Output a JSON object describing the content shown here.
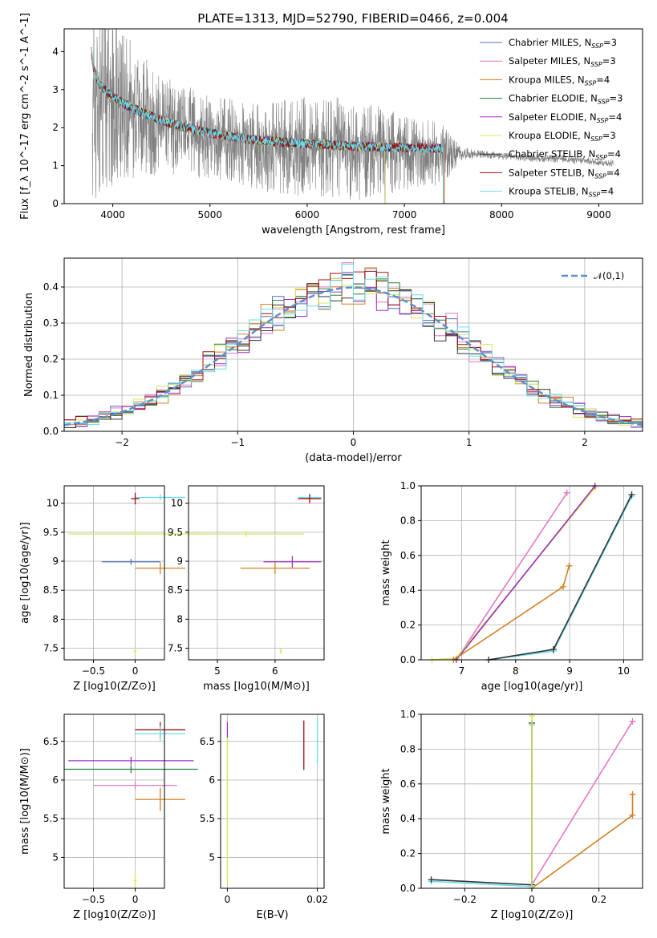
{
  "figure": {
    "title": "PLATE=1313, MJD=52790, FIBERID=0466, z=0.004"
  },
  "chart_data": [
    {
      "id": "spectrum",
      "type": "line",
      "title": "PLATE=1313, MJD=52790, FIBERID=0466, z=0.004",
      "xlabel": "wavelength [Angstrom, rest frame]",
      "ylabel": "Flux [f_λ 10^-17 erg cm^-2 s^-1 A^-1]",
      "xlim": [
        3500,
        9450
      ],
      "ylim": [
        0,
        4.6
      ],
      "xticks": [
        4000,
        5000,
        6000,
        7000,
        8000,
        9000
      ],
      "yticks": [
        0,
        1,
        2,
        3,
        4
      ],
      "grid": false,
      "legend_position": "top-right",
      "observed": {
        "name": "data",
        "x": [
          3790,
          3850,
          3950,
          4100,
          4300,
          4600,
          5000,
          5400,
          5800,
          6200,
          6600,
          7000,
          7400,
          7600,
          7800,
          8000,
          8300,
          8600,
          8900,
          9150
        ],
        "y": [
          2.4,
          3.0,
          2.9,
          2.6,
          2.3,
          2.0,
          1.75,
          1.6,
          1.5,
          1.45,
          1.4,
          1.35,
          1.3,
          1.32,
          1.3,
          1.25,
          1.2,
          1.18,
          1.12,
          1.05
        ],
        "noise_amplitude": [
          3.0,
          3.0,
          2.5,
          2.0,
          1.6,
          1.3,
          1.1,
          1.2,
          1.3,
          1.4,
          1.3,
          1.0,
          0.8,
          0.15,
          0.1,
          0.1,
          0.1,
          0.1,
          0.1,
          0.1
        ]
      },
      "models": [
        {
          "name": "Chabrier MILES, N_SSP=3",
          "color": "#4c72b0",
          "x_end": 7410
        },
        {
          "name": "Salpeter MILES, N_SSP=3",
          "color": "#e377c2",
          "x_end": 7410
        },
        {
          "name": "Kroupa MILES, N_SSP=4",
          "color": "#d08020",
          "x_end": 7410
        },
        {
          "name": "Chabrier ELODIE, N_SSP=3",
          "color": "#2a7d3a",
          "x_end": 6800
        },
        {
          "name": "Salpeter ELODIE, N_SSP=4",
          "color": "#9b30c0",
          "x_end": 6800
        },
        {
          "name": "Kroupa ELODIE, N_SSP=3",
          "color": "#d5e85a",
          "x_end": 6800
        },
        {
          "name": "Chabrier STELIB, N_SSP=4",
          "color": "#333333",
          "x_end": 7400
        },
        {
          "name": "Salpeter STELIB, N_SSP=4",
          "color": "#a01010",
          "x_end": 7400
        },
        {
          "name": "Kroupa STELIB, N_SSP=4",
          "color": "#66ddee",
          "x_end": 7400
        }
      ],
      "model_curve": {
        "x": [
          3780,
          3800,
          3850,
          3950,
          4100,
          4300,
          4600,
          5000,
          5400,
          5800,
          6200,
          6600,
          7000,
          7400
        ],
        "y": [
          4.0,
          3.6,
          3.2,
          2.9,
          2.65,
          2.4,
          2.1,
          1.85,
          1.7,
          1.6,
          1.55,
          1.5,
          1.48,
          1.45
        ]
      }
    },
    {
      "id": "residuals",
      "type": "line",
      "xlabel": "(data-model)/error",
      "ylabel": "Normed distribution",
      "xlim": [
        -2.5,
        2.5
      ],
      "ylim": [
        0,
        0.48
      ],
      "xticks": [
        -2,
        -1,
        0,
        1,
        2
      ],
      "yticks": [
        0.0,
        0.1,
        0.2,
        0.3,
        0.4
      ],
      "grid": true,
      "legend": [
        "𝒩(0,1)"
      ],
      "legend_position": "top-right",
      "reference": {
        "name": "𝒩(0,1)",
        "mean": 0,
        "sigma": 1,
        "color": "#5b8fd0"
      },
      "histogram_bin_width": 0.1
    },
    {
      "id": "age-vs-Z",
      "type": "scatter",
      "xlabel": "Z [log10(Z/Z⊙)]",
      "ylabel": "age [log10(age/yr)]",
      "xlim": [
        -0.85,
        0.35
      ],
      "ylim": [
        7.3,
        10.3
      ],
      "xticks": [
        -0.5,
        0.0
      ],
      "yticks": [
        7.5,
        8.0,
        8.5,
        9.0,
        9.5,
        10.0
      ],
      "grid": true,
      "points": [
        {
          "x": 0.3,
          "y": 10.1,
          "x_err": 0.3,
          "y_err": 0.05,
          "color": "#66ddee"
        },
        {
          "x": 0.0,
          "y": 10.08,
          "x_err": 0.05,
          "y_err": 0.1,
          "color": "#a01010"
        },
        {
          "x": 0.0,
          "y": 9.47,
          "x_err": 0.8,
          "y_err": 0.05,
          "color": "#d5e85a"
        },
        {
          "x": -0.05,
          "y": 8.99,
          "x_err": 0.35,
          "y_err": 0.05,
          "color": "#4c72b0"
        },
        {
          "x": 0.3,
          "y": 8.88,
          "x_err": 0.3,
          "y_err": 0.1,
          "color": "#d08020"
        },
        {
          "x": 0.0,
          "y": 7.45,
          "x_err": 0.02,
          "y_err": 0.05,
          "color": "#d5e85a"
        }
      ]
    },
    {
      "id": "age-vs-mass",
      "type": "scatter",
      "xlabel": "mass [log10(M/M⊙)]",
      "ylabel": "",
      "xlim": [
        4.5,
        6.85
      ],
      "ylim": [
        7.3,
        10.3
      ],
      "xticks": [
        5,
        6
      ],
      "yticks": [
        7.5,
        8.0,
        8.5,
        9.0,
        9.5,
        10.0
      ],
      "grid": true,
      "points": [
        {
          "x": 6.6,
          "y": 10.1,
          "x_err": 0.2,
          "y_err": 0.05,
          "color": "#66ddee"
        },
        {
          "x": 6.6,
          "y": 10.08,
          "x_err": 0.2,
          "y_err": 0.08,
          "color": "#a01010"
        },
        {
          "x": 5.5,
          "y": 9.47,
          "x_err": 1.0,
          "y_err": 0.05,
          "color": "#d5e85a"
        },
        {
          "x": 6.3,
          "y": 8.99,
          "x_err": 0.5,
          "y_err": 0.1,
          "color": "#9b30c0"
        },
        {
          "x": 6.0,
          "y": 8.88,
          "x_err": 0.6,
          "y_err": 0.1,
          "color": "#d08020"
        },
        {
          "x": 6.1,
          "y": 7.45,
          "x_err": 0.02,
          "y_err": 0.05,
          "color": "#d5e85a"
        }
      ]
    },
    {
      "id": "cumulative-age",
      "type": "line",
      "xlabel": "age [log10(age/yr)]",
      "ylabel": "mass weight",
      "xlim": [
        6.25,
        10.35
      ],
      "ylim": [
        0,
        1.0
      ],
      "xticks": [
        7,
        8,
        9,
        10
      ],
      "yticks": [
        0.0,
        0.2,
        0.4,
        0.6,
        0.8,
        1.0
      ],
      "grid": true,
      "series": [
        {
          "color": "#e377c2",
          "x": [
            6.9,
            8.95
          ],
          "y": [
            0.0,
            0.96
          ]
        },
        {
          "color": "#d5e85a",
          "x": [
            6.45,
            6.9,
            9.47
          ],
          "y": [
            0.0,
            0.01,
            0.99
          ]
        },
        {
          "color": "#9b30c0",
          "x": [
            6.9,
            9.47
          ],
          "y": [
            0.0,
            1.0
          ]
        },
        {
          "color": "#d08020",
          "x": [
            6.85,
            8.88,
            8.99
          ],
          "y": [
            0.0,
            0.42,
            0.54
          ]
        },
        {
          "color": "#66ddee",
          "x": [
            7.5,
            8.7,
            10.15
          ],
          "y": [
            0.0,
            0.05,
            0.94
          ]
        },
        {
          "color": "#333333",
          "x": [
            7.5,
            8.7,
            10.15
          ],
          "y": [
            0.0,
            0.06,
            0.95
          ]
        }
      ]
    },
    {
      "id": "mass-vs-Z",
      "type": "scatter",
      "xlabel": "Z [log10(Z/Z⊙)]",
      "ylabel": "mass [log10(M/M⊙)]",
      "xlim": [
        -0.85,
        0.35
      ],
      "ylim": [
        4.6,
        6.85
      ],
      "xticks": [
        -0.5,
        0.0
      ],
      "yticks": [
        5.0,
        5.5,
        6.0,
        6.5
      ],
      "grid": true,
      "points": [
        {
          "x": 0.3,
          "y": 6.65,
          "x_err": 0.3,
          "y_err": 0.1,
          "color": "#a01010"
        },
        {
          "x": 0.3,
          "y": 6.6,
          "x_err": 0.3,
          "y_err": 0.1,
          "color": "#66ddee"
        },
        {
          "x": -0.05,
          "y": 6.25,
          "x_err": 0.75,
          "y_err": 0.05,
          "color": "#9b30c0"
        },
        {
          "x": -0.05,
          "y": 6.14,
          "x_err": 0.8,
          "y_err": 0.05,
          "color": "#2a7d3a"
        },
        {
          "x": 0.0,
          "y": 5.93,
          "x_err": 0.5,
          "y_err": 0.05,
          "color": "#e377c2"
        },
        {
          "x": 0.3,
          "y": 5.75,
          "x_err": 0.3,
          "y_err": 0.15,
          "color": "#d08020"
        },
        {
          "x": 0.0,
          "y": 4.7,
          "x_err": 0.02,
          "y_err": 0.1,
          "color": "#d5e85a"
        }
      ]
    },
    {
      "id": "mass-vs-EBV",
      "type": "scatter",
      "xlabel": "E(B-V)",
      "ylabel": "",
      "xlim": [
        -0.0015,
        0.0215
      ],
      "ylim": [
        4.6,
        6.85
      ],
      "xticks": [
        0.0,
        0.02
      ],
      "yticks": [
        5.0,
        5.5,
        6.0,
        6.5
      ],
      "grid": true,
      "points": [
        {
          "x": 0.017,
          "y": 6.45,
          "x_err": 0.0,
          "y_err": 0.32,
          "color": "#a01010"
        },
        {
          "x": 0.02,
          "y": 6.5,
          "x_err": 0.0,
          "y_err": 0.3,
          "color": "#66ddee"
        },
        {
          "x": 0.0,
          "y": 6.65,
          "x_err": 0.0,
          "y_err": 0.1,
          "color": "#9b30c0"
        },
        {
          "x": 0.0,
          "y": 5.6,
          "x_err": 0.0,
          "y_err": 0.95,
          "color": "#d5e85a"
        }
      ]
    },
    {
      "id": "cumulative-Z",
      "type": "line",
      "xlabel": "Z [log10(Z/Z⊙)]",
      "ylabel": "mass weight",
      "xlim": [
        -0.33,
        0.33
      ],
      "ylim": [
        0,
        1.0
      ],
      "xticks": [
        -0.2,
        0.0,
        0.2
      ],
      "yticks": [
        0.0,
        0.2,
        0.4,
        0.6,
        0.8,
        1.0
      ],
      "grid": true,
      "series": [
        {
          "color": "#e377c2",
          "x": [
            0.0,
            0.3
          ],
          "y": [
            0.02,
            0.96
          ]
        },
        {
          "color": "#d08020",
          "x": [
            0.0,
            0.3,
            0.3
          ],
          "y": [
            0.0,
            0.42,
            0.54
          ]
        },
        {
          "color": "#66ddee",
          "x": [
            -0.3,
            0.0,
            0.0
          ],
          "y": [
            0.04,
            0.01,
            0.94
          ]
        },
        {
          "color": "#333333",
          "x": [
            -0.3,
            0.0,
            0.0
          ],
          "y": [
            0.05,
            0.02,
            0.95
          ]
        },
        {
          "color": "#d5e85a",
          "x": [
            0.0,
            0.0
          ],
          "y": [
            0.0,
            0.99
          ]
        }
      ]
    }
  ]
}
